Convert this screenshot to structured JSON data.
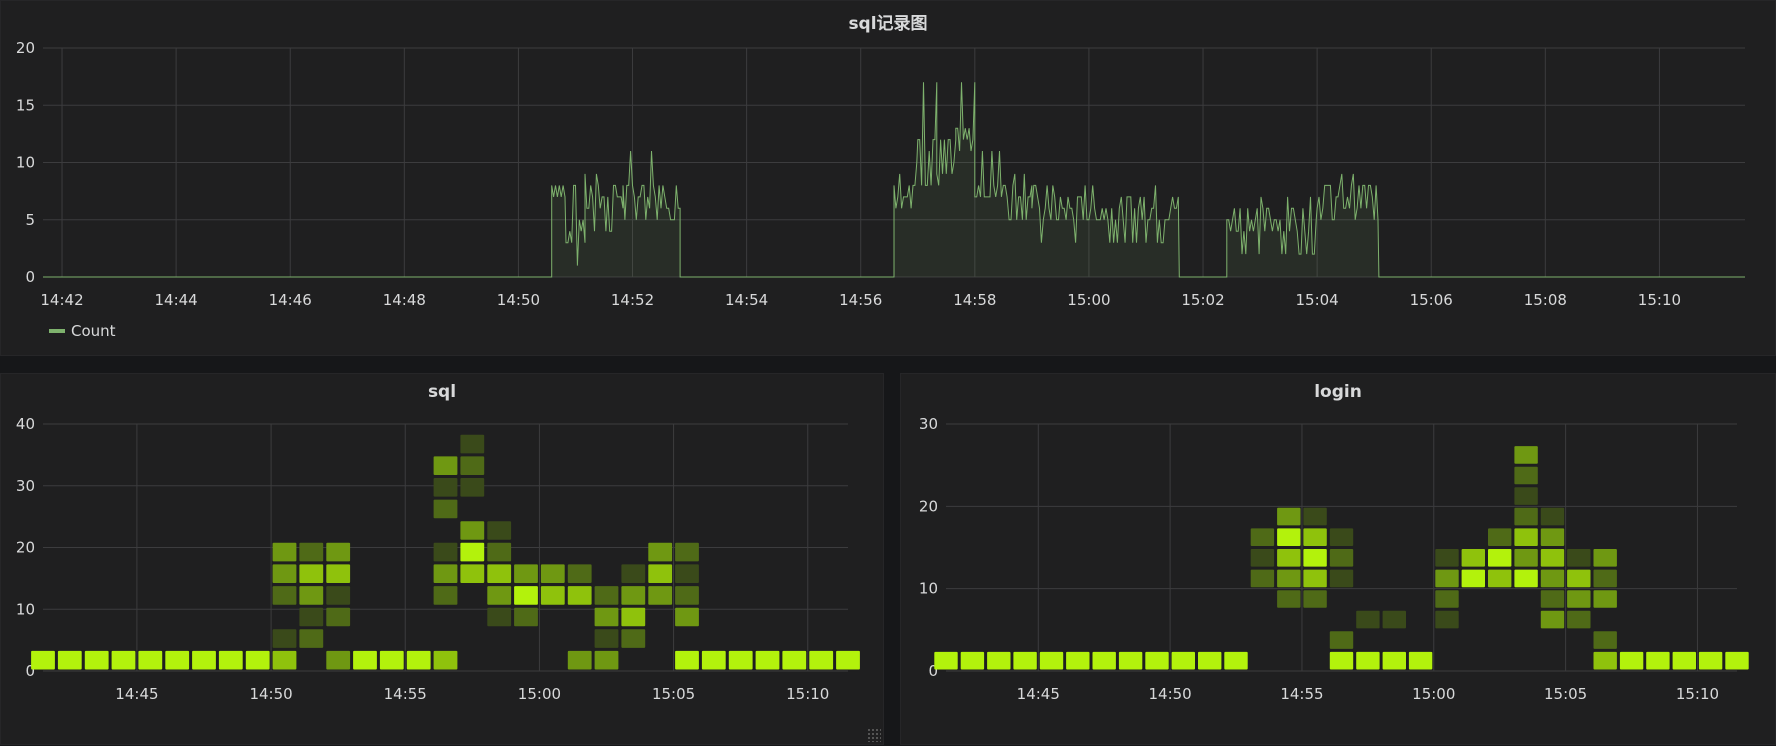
{
  "panels": {
    "top": {
      "title": "sql记录图",
      "legend": "Count"
    },
    "sql": {
      "title": "sql"
    },
    "login": {
      "title": "login"
    }
  },
  "colors": {
    "line": "#7eb26d",
    "heat_levels": [
      "#3a4a1a",
      "#4f6a17",
      "#6f9812",
      "#8fc20c",
      "#b3f20c"
    ]
  },
  "chart_data": [
    {
      "type": "area",
      "title": "sql记录图",
      "series": [
        {
          "name": "Count"
        }
      ],
      "x_tick_labels": [
        "14:42",
        "14:44",
        "14:46",
        "14:48",
        "14:50",
        "14:52",
        "14:54",
        "14:56",
        "14:58",
        "15:00",
        "15:02",
        "15:04",
        "15:06",
        "15:08",
        "15:10"
      ],
      "x_start": "14:41:40",
      "x_end": "15:11:30",
      "ylim": [
        0,
        20
      ],
      "y_ticks": [
        0,
        5,
        10,
        15,
        20
      ],
      "segments": [
        {
          "start": "14:41:40",
          "end": "14:50:35",
          "level": 0,
          "lo": 0,
          "hi": 0
        },
        {
          "start": "14:50:35",
          "end": "14:50:50",
          "level": 8,
          "lo": 7,
          "hi": 10
        },
        {
          "start": "14:50:50",
          "end": "14:51:10",
          "level": 4,
          "lo": 1,
          "hi": 8
        },
        {
          "start": "14:51:10",
          "end": "14:51:50",
          "level": 7,
          "lo": 4,
          "hi": 9
        },
        {
          "start": "14:51:50",
          "end": "14:52:50",
          "level": 7,
          "lo": 5,
          "hi": 11
        },
        {
          "start": "14:52:50",
          "end": "14:56:35",
          "level": 0,
          "lo": 0,
          "hi": 0
        },
        {
          "start": "14:56:35",
          "end": "14:57:00",
          "level": 8,
          "lo": 6,
          "hi": 10
        },
        {
          "start": "14:57:00",
          "end": "14:57:20",
          "level": 12,
          "lo": 8,
          "hi": 17
        },
        {
          "start": "14:57:20",
          "end": "14:57:40",
          "level": 9,
          "lo": 8,
          "hi": 12
        },
        {
          "start": "14:57:40",
          "end": "14:58:00",
          "level": 12,
          "lo": 8,
          "hi": 17
        },
        {
          "start": "14:58:00",
          "end": "14:59:00",
          "level": 8,
          "lo": 5,
          "hi": 11
        },
        {
          "start": "14:59:00",
          "end": "15:01:35",
          "level": 6,
          "lo": 3,
          "hi": 8
        },
        {
          "start": "15:01:35",
          "end": "15:02:25",
          "level": 0,
          "lo": 0,
          "hi": 0
        },
        {
          "start": "15:02:25",
          "end": "15:04:00",
          "level": 5,
          "lo": 2,
          "hi": 7
        },
        {
          "start": "15:04:00",
          "end": "15:05:05",
          "level": 7,
          "lo": 5,
          "hi": 9
        },
        {
          "start": "15:05:05",
          "end": "15:11:30",
          "level": 0,
          "lo": 0,
          "hi": 0
        }
      ]
    },
    {
      "type": "heatmap",
      "title": "sql",
      "x_tick_labels": [
        "14:45",
        "14:50",
        "14:55",
        "15:00",
        "15:05",
        "15:10"
      ],
      "x_start": "14:41:30",
      "x_end": "15:11:30",
      "bucket_minutes": 1,
      "y_bucket_size": 3.5,
      "ylim": [
        0,
        40
      ],
      "y_ticks": [
        0,
        10,
        20,
        30,
        40
      ],
      "columns": [
        {
          "t": "14:41",
          "cells": [
            [
              0,
              4
            ]
          ]
        },
        {
          "t": "14:42",
          "cells": [
            [
              0,
              4
            ]
          ]
        },
        {
          "t": "14:43",
          "cells": [
            [
              0,
              4
            ]
          ]
        },
        {
          "t": "14:44",
          "cells": [
            [
              0,
              4
            ]
          ]
        },
        {
          "t": "14:45",
          "cells": [
            [
              0,
              4
            ]
          ]
        },
        {
          "t": "14:46",
          "cells": [
            [
              0,
              4
            ]
          ]
        },
        {
          "t": "14:47",
          "cells": [
            [
              0,
              4
            ]
          ]
        },
        {
          "t": "14:48",
          "cells": [
            [
              0,
              4
            ]
          ]
        },
        {
          "t": "14:49",
          "cells": [
            [
              0,
              4
            ]
          ]
        },
        {
          "t": "14:50",
          "cells": [
            [
              0,
              3
            ],
            [
              1,
              0
            ],
            [
              3,
              1
            ],
            [
              4,
              2
            ],
            [
              5,
              2
            ]
          ]
        },
        {
          "t": "14:51",
          "cells": [
            [
              1,
              1
            ],
            [
              2,
              0
            ],
            [
              3,
              2
            ],
            [
              4,
              3
            ],
            [
              5,
              1
            ]
          ]
        },
        {
          "t": "14:52",
          "cells": [
            [
              0,
              2
            ],
            [
              2,
              1
            ],
            [
              3,
              0
            ],
            [
              4,
              3
            ],
            [
              5,
              2
            ]
          ]
        },
        {
          "t": "14:53",
          "cells": [
            [
              0,
              4
            ]
          ]
        },
        {
          "t": "14:54",
          "cells": [
            [
              0,
              4
            ]
          ]
        },
        {
          "t": "14:55",
          "cells": [
            [
              0,
              4
            ]
          ]
        },
        {
          "t": "14:56",
          "cells": [
            [
              0,
              3
            ],
            [
              3,
              1
            ],
            [
              4,
              2
            ],
            [
              5,
              0
            ],
            [
              7,
              1
            ],
            [
              8,
              0
            ],
            [
              9,
              2
            ]
          ]
        },
        {
          "t": "14:57",
          "cells": [
            [
              4,
              3
            ],
            [
              5,
              4
            ],
            [
              6,
              2
            ],
            [
              8,
              0
            ],
            [
              9,
              1
            ],
            [
              10,
              0
            ]
          ]
        },
        {
          "t": "14:58",
          "cells": [
            [
              2,
              0
            ],
            [
              3,
              2
            ],
            [
              4,
              3
            ],
            [
              5,
              1
            ],
            [
              6,
              0
            ]
          ]
        },
        {
          "t": "14:59",
          "cells": [
            [
              2,
              1
            ],
            [
              3,
              4
            ],
            [
              4,
              2
            ]
          ]
        },
        {
          "t": "15:00",
          "cells": [
            [
              3,
              3
            ],
            [
              4,
              2
            ]
          ]
        },
        {
          "t": "15:01",
          "cells": [
            [
              0,
              2
            ],
            [
              3,
              3
            ],
            [
              4,
              1
            ]
          ]
        },
        {
          "t": "15:02",
          "cells": [
            [
              0,
              2
            ],
            [
              1,
              0
            ],
            [
              2,
              2
            ],
            [
              3,
              1
            ]
          ]
        },
        {
          "t": "15:03",
          "cells": [
            [
              1,
              1
            ],
            [
              2,
              3
            ],
            [
              3,
              2
            ],
            [
              4,
              0
            ]
          ]
        },
        {
          "t": "15:04",
          "cells": [
            [
              3,
              2
            ],
            [
              4,
              3
            ],
            [
              5,
              2
            ]
          ]
        },
        {
          "t": "15:05",
          "cells": [
            [
              0,
              4
            ],
            [
              2,
              2
            ],
            [
              3,
              1
            ],
            [
              4,
              0
            ],
            [
              5,
              1
            ]
          ]
        },
        {
          "t": "15:06",
          "cells": [
            [
              0,
              4
            ]
          ]
        },
        {
          "t": "15:07",
          "cells": [
            [
              0,
              4
            ]
          ]
        },
        {
          "t": "15:08",
          "cells": [
            [
              0,
              4
            ]
          ]
        },
        {
          "t": "15:09",
          "cells": [
            [
              0,
              4
            ]
          ]
        },
        {
          "t": "15:10",
          "cells": [
            [
              0,
              4
            ]
          ]
        },
        {
          "t": "15:11",
          "cells": [
            [
              0,
              4
            ]
          ]
        }
      ]
    },
    {
      "type": "heatmap",
      "title": "login",
      "x_tick_labels": [
        "14:45",
        "14:50",
        "14:55",
        "15:00",
        "15:05",
        "15:10"
      ],
      "x_start": "14:41:30",
      "x_end": "15:11:30",
      "bucket_minutes": 1,
      "y_bucket_size": 2.5,
      "ylim": [
        0,
        30
      ],
      "y_ticks": [
        0,
        10,
        20,
        30
      ],
      "columns": [
        {
          "t": "14:41",
          "cells": [
            [
              0,
              4
            ]
          ]
        },
        {
          "t": "14:42",
          "cells": [
            [
              0,
              4
            ]
          ]
        },
        {
          "t": "14:43",
          "cells": [
            [
              0,
              4
            ]
          ]
        },
        {
          "t": "14:44",
          "cells": [
            [
              0,
              4
            ]
          ]
        },
        {
          "t": "14:45",
          "cells": [
            [
              0,
              4
            ]
          ]
        },
        {
          "t": "14:46",
          "cells": [
            [
              0,
              4
            ]
          ]
        },
        {
          "t": "14:47",
          "cells": [
            [
              0,
              4
            ]
          ]
        },
        {
          "t": "14:48",
          "cells": [
            [
              0,
              4
            ]
          ]
        },
        {
          "t": "14:49",
          "cells": [
            [
              0,
              4
            ]
          ]
        },
        {
          "t": "14:50",
          "cells": [
            [
              0,
              4
            ]
          ]
        },
        {
          "t": "14:51",
          "cells": [
            [
              0,
              4
            ]
          ]
        },
        {
          "t": "14:52",
          "cells": [
            [
              0,
              4
            ]
          ]
        },
        {
          "t": "14:53",
          "cells": [
            [
              4,
              1
            ],
            [
              5,
              0
            ],
            [
              6,
              1
            ]
          ]
        },
        {
          "t": "14:54",
          "cells": [
            [
              3,
              1
            ],
            [
              4,
              2
            ],
            [
              5,
              3
            ],
            [
              6,
              4
            ],
            [
              7,
              2
            ]
          ]
        },
        {
          "t": "14:55",
          "cells": [
            [
              3,
              1
            ],
            [
              4,
              3
            ],
            [
              5,
              4
            ],
            [
              6,
              3
            ],
            [
              7,
              0
            ]
          ]
        },
        {
          "t": "14:56",
          "cells": [
            [
              0,
              4
            ],
            [
              1,
              1
            ],
            [
              4,
              0
            ],
            [
              5,
              1
            ],
            [
              6,
              0
            ]
          ]
        },
        {
          "t": "14:57",
          "cells": [
            [
              0,
              4
            ],
            [
              2,
              0
            ]
          ]
        },
        {
          "t": "14:58",
          "cells": [
            [
              0,
              4
            ],
            [
              2,
              0
            ]
          ]
        },
        {
          "t": "14:59",
          "cells": [
            [
              0,
              4
            ]
          ]
        },
        {
          "t": "15:00",
          "cells": [
            [
              2,
              0
            ],
            [
              3,
              1
            ],
            [
              4,
              2
            ],
            [
              5,
              0
            ]
          ]
        },
        {
          "t": "15:01",
          "cells": [
            [
              4,
              4
            ],
            [
              5,
              3
            ]
          ]
        },
        {
          "t": "15:02",
          "cells": [
            [
              4,
              3
            ],
            [
              5,
              4
            ],
            [
              6,
              1
            ]
          ]
        },
        {
          "t": "15:03",
          "cells": [
            [
              4,
              4
            ],
            [
              5,
              2
            ],
            [
              6,
              3
            ],
            [
              7,
              1
            ],
            [
              8,
              0
            ],
            [
              9,
              1
            ],
            [
              10,
              2
            ]
          ]
        },
        {
          "t": "15:04",
          "cells": [
            [
              2,
              2
            ],
            [
              3,
              1
            ],
            [
              4,
              2
            ],
            [
              5,
              3
            ],
            [
              6,
              2
            ],
            [
              7,
              0
            ]
          ]
        },
        {
          "t": "15:05",
          "cells": [
            [
              2,
              1
            ],
            [
              3,
              2
            ],
            [
              4,
              3
            ],
            [
              5,
              0
            ]
          ]
        },
        {
          "t": "15:06",
          "cells": [
            [
              0,
              3
            ],
            [
              1,
              1
            ],
            [
              3,
              2
            ],
            [
              4,
              1
            ],
            [
              5,
              2
            ]
          ]
        },
        {
          "t": "15:07",
          "cells": [
            [
              0,
              4
            ]
          ]
        },
        {
          "t": "15:08",
          "cells": [
            [
              0,
              4
            ]
          ]
        },
        {
          "t": "15:09",
          "cells": [
            [
              0,
              4
            ]
          ]
        },
        {
          "t": "15:10",
          "cells": [
            [
              0,
              4
            ]
          ]
        },
        {
          "t": "15:11",
          "cells": [
            [
              0,
              4
            ]
          ]
        }
      ]
    }
  ]
}
